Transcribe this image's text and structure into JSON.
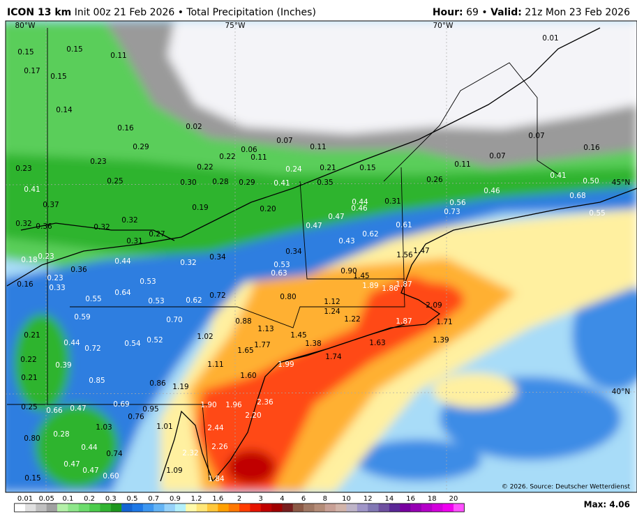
{
  "header": {
    "model": "ICON 13 km",
    "detail": "Init 00z 21 Feb 2026 • Total Precipitation (Inches)",
    "hour_label": "Hour:",
    "hour_value": "69 •",
    "valid_label": "Valid:",
    "valid_value": "21z Mon 23 Feb 2026"
  },
  "grid_labels": [
    "80°W",
    "75°W",
    "70°W",
    "45°N",
    "40°N"
  ],
  "copyright": "© 2026. Source: Deutscher Wetterdienst",
  "max": "Max: 4.06",
  "labels": [
    "0.15",
    "0.15",
    "0.11",
    "0.17",
    "0.15",
    "0.14",
    "0.16",
    "0.02",
    "0.07",
    "0.06",
    "0.11",
    "0.01",
    "0.07",
    "0.07",
    "0.11",
    "0.16",
    "0.29",
    "0.23",
    "0.22",
    "0.22",
    "0.11",
    "0.24",
    "0.21",
    "0.15",
    "0.23",
    "0.25",
    "0.30",
    "0.28",
    "0.29",
    "0.41",
    "0.35",
    "0.26",
    "0.41",
    "0.50",
    "0.41",
    "0.46",
    "0.68",
    "0.37",
    "0.19",
    "0.20",
    "0.44",
    "0.46",
    "0.31",
    "0.56",
    "0.73",
    "0.55",
    "0.32",
    "0.36",
    "0.32",
    "0.32",
    "0.27",
    "0.47",
    "0.47",
    "0.62",
    "0.61",
    "0.31",
    "0.43",
    "0.18",
    "0.23",
    "0.44",
    "0.36",
    "0.32",
    "0.34",
    "0.34",
    "0.53",
    "0.63",
    "1.56",
    "1.47",
    "0.23",
    "0.33",
    "0.16",
    "0.90",
    "1.45",
    "1.89",
    "1.86",
    "1.87",
    "0.55",
    "0.64",
    "0.53",
    "0.53",
    "0.62",
    "0.72",
    "0.80",
    "1.12",
    "1.24",
    "1.22",
    "2.09",
    "0.59",
    "0.70",
    "0.88",
    "1.13",
    "1.87",
    "1.71",
    "0.21",
    "1.45",
    "1.63",
    "1.39",
    "0.44",
    "0.72",
    "0.54",
    "0.52",
    "1.02",
    "1.77",
    "1.38",
    "1.65",
    "0.22",
    "0.39",
    "1.11",
    "1.99",
    "1.74",
    "0.21",
    "0.85",
    "0.86",
    "1.19",
    "1.60",
    "0.25",
    "0.66",
    "0.47",
    "0.69",
    "0.95",
    "1.90",
    "1.96",
    "2.36",
    "0.76",
    "2.20",
    "0.28",
    "1.03",
    "1.01",
    "2.44",
    "0.80",
    "0.44",
    "2.26",
    "0.74",
    "2.32",
    "0.47",
    "0.47",
    "0.60",
    "0.15",
    "1.84",
    "1.09"
  ],
  "legend": {
    "ticks": [
      "0.01",
      "0.05",
      "0.1",
      "0.2",
      "0.3",
      "0.5",
      "0.7",
      "0.9",
      "1.2",
      "1.6",
      "2",
      "3",
      "4",
      "6",
      "8",
      "10",
      "12",
      "14",
      "16",
      "18",
      "20"
    ],
    "colors": [
      "#ffffff",
      "#e0e0e0",
      "#c0c0c0",
      "#a0a0a0",
      "#b4f0a8",
      "#8ee68a",
      "#6cdc6c",
      "#4ccc4c",
      "#32b432",
      "#1e961e",
      "#1464d2",
      "#1e78e6",
      "#3c96f0",
      "#64b4f5",
      "#96d2fa",
      "#b4f0fa",
      "#fffaaa",
      "#ffe678",
      "#ffc83c",
      "#ffa000",
      "#ff7800",
      "#ff3c00",
      "#e61400",
      "#c00000",
      "#a00000",
      "#781e1e",
      "#8c5a46",
      "#a07864",
      "#b48c78",
      "#c8a096",
      "#d2b4aa",
      "#beb4c8",
      "#a096c8",
      "#8278b4",
      "#6e50a0",
      "#5a2896",
      "#7800a0",
      "#9600b4",
      "#b400c8",
      "#d200dc",
      "#f000f0",
      "#ff50ff"
    ]
  }
}
